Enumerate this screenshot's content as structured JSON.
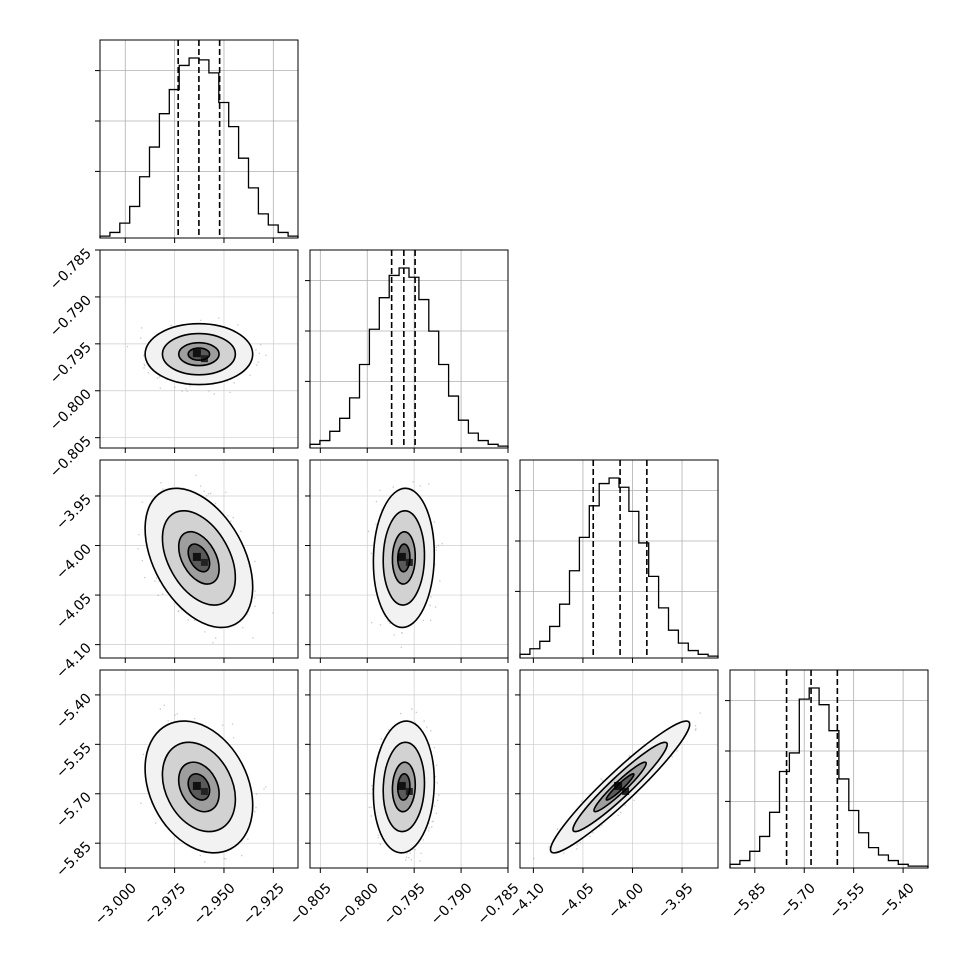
{
  "chart_data": {
    "type": "corner",
    "grid": true,
    "parameters": [
      {
        "id": "p1",
        "ticks": [
          -3.0,
          -2.975,
          -2.95,
          -2.925
        ],
        "tick_labels": [
          "−3.000",
          "−2.975",
          "−2.950",
          "−2.925"
        ],
        "range": [
          -3.0128,
          -2.9125
        ],
        "quantiles": [
          -2.9732,
          -2.9627,
          -2.9522
        ]
      },
      {
        "id": "p2",
        "ticks": [
          -0.805,
          -0.8,
          -0.795,
          -0.79,
          -0.785
        ],
        "tick_labels": [
          "−0.805",
          "−0.800",
          "−0.795",
          "−0.790",
          "−0.785"
        ],
        "range": [
          -0.8061,
          -0.785
        ],
        "quantiles": [
          -0.7974,
          -0.7961,
          -0.7949
        ]
      },
      {
        "id": "p3",
        "ticks": [
          -4.1,
          -4.05,
          -4.0,
          -3.95
        ],
        "tick_labels": [
          "−4.10",
          "−4.05",
          "−4.00",
          "−3.95"
        ],
        "range": [
          -4.1135,
          -3.9137
        ],
        "quantiles": [
          -4.0396,
          -4.0125,
          -3.9855
        ]
      },
      {
        "id": "p4",
        "ticks": [
          -5.85,
          -5.7,
          -5.55,
          -5.4
        ],
        "tick_labels": [
          "−5.85",
          "−5.70",
          "−5.55",
          "−5.40"
        ],
        "range": [
          -5.9253,
          -5.3244
        ],
        "quantiles": [
          -5.7536,
          -5.6793,
          -5.5995
        ]
      }
    ],
    "histograms": [
      {
        "parameter": "p1",
        "counts": [
          1,
          3,
          8,
          17,
          33,
          49,
          67,
          80,
          93,
          97,
          96,
          89,
          73,
          60,
          43,
          27,
          13,
          7,
          3,
          1
        ]
      },
      {
        "parameter": "p2",
        "counts": [
          2,
          4,
          9,
          16,
          27,
          45,
          64,
          81,
          93,
          97,
          92,
          80,
          63,
          45,
          28,
          15,
          8,
          4,
          2,
          1
        ]
      },
      {
        "parameter": "p3",
        "counts": [
          2,
          5,
          9,
          17,
          29,
          47,
          65,
          82,
          94,
          97,
          92,
          79,
          62,
          44,
          27,
          15,
          8,
          4,
          2,
          1
        ]
      },
      {
        "parameter": "p4",
        "counts": [
          2,
          4,
          9,
          17,
          30,
          52,
          62,
          91,
          97,
          88,
          74,
          48,
          31,
          19,
          11,
          7,
          4,
          2,
          1,
          1
        ]
      }
    ],
    "pairs": [
      {
        "x": "p1",
        "y": "p2",
        "rho": 0.0
      },
      {
        "x": "p1",
        "y": "p3",
        "rho": -0.42
      },
      {
        "x": "p2",
        "y": "p3",
        "rho": 0.05
      },
      {
        "x": "p1",
        "y": "p4",
        "rho": -0.28
      },
      {
        "x": "p2",
        "y": "p4",
        "rho": 0.08
      },
      {
        "x": "p3",
        "y": "p4",
        "rho": 0.95
      }
    ]
  }
}
